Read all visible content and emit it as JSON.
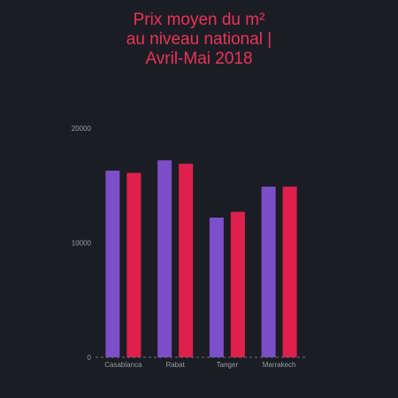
{
  "chart_data": {
    "type": "bar",
    "title_lines": [
      "Prix moyen du m²",
      "au niveau national |",
      "Avril-Mai 2018"
    ],
    "categories": [
      "Casablanca",
      "Rabat",
      "Tanger",
      "Marrakech"
    ],
    "series": [
      {
        "color": "#7b4fc8",
        "values": [
          16300,
          17200,
          12200,
          14900
        ]
      },
      {
        "color": "#e0204c",
        "values": [
          16100,
          16900,
          12700,
          14900
        ]
      }
    ],
    "xlabel": "",
    "ylabel": "",
    "ylim": [
      0,
      20000
    ],
    "yticks": [
      0,
      10000,
      20000
    ],
    "grid": false,
    "colors": {
      "background": "#1c1d24",
      "title": "#e8335a",
      "tick_text": "#9a9ba3",
      "baseline": "#6d6e76"
    }
  }
}
